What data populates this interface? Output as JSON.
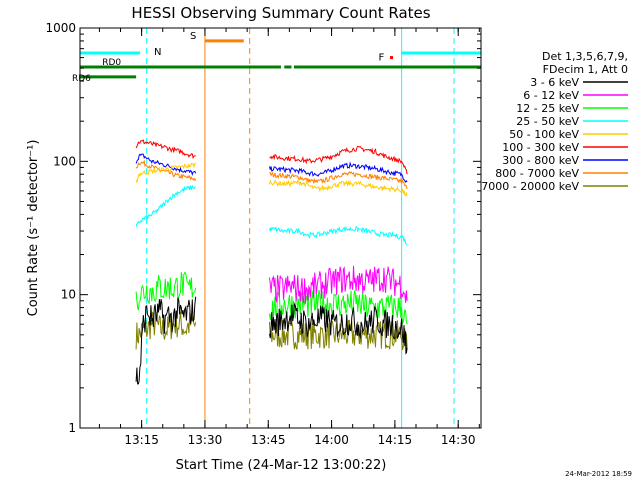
{
  "chart_data": {
    "type": "line",
    "title": "HESSI Observing Summary Count Rates",
    "xlabel": "Start Time (24-Mar-12 13:00:22)",
    "ylabel": "Count Rate (s⁻¹ detector⁻¹)",
    "x_unit": "minutes after 13:00:22",
    "xlim": [
      0,
      95
    ],
    "ylim": [
      1,
      1000
    ],
    "yscale": "log",
    "grid": false,
    "legend_position": "right",
    "x_ticks": [
      {
        "label": "13:15",
        "value": 14.6
      },
      {
        "label": "13:30",
        "value": 29.6
      },
      {
        "label": "13:45",
        "value": 44.6
      },
      {
        "label": "14:00",
        "value": 59.6
      },
      {
        "label": "14:15",
        "value": 74.6
      },
      {
        "label": "14:30",
        "value": 89.6
      }
    ],
    "y_ticks": [
      {
        "label": "1",
        "value": 1
      },
      {
        "label": "10",
        "value": 10
      },
      {
        "label": "100",
        "value": 100
      },
      {
        "label": "1000",
        "value": 1000
      }
    ],
    "legend_header": [
      "Det 1,3,5,6,7,9,",
      "FDecim 1, Att 0"
    ],
    "series": [
      {
        "name": "3 - 6 keV",
        "color": "#000000",
        "x": [
          13.3,
          14,
          15,
          16,
          17,
          18,
          19,
          20,
          21,
          22,
          23,
          24,
          25,
          26,
          27,
          27.6,
          44.9,
          46,
          48,
          50,
          52,
          54,
          56,
          58,
          60,
          62,
          64,
          66,
          68,
          70,
          72,
          74,
          76,
          76.4,
          77.5
        ],
        "y": [
          2.5,
          2.3,
          6,
          7.5,
          6.5,
          7,
          7.5,
          6.5,
          7,
          6.5,
          7.5,
          7,
          7,
          7.5,
          7.5,
          8,
          6,
          6,
          6.5,
          7,
          6.5,
          6,
          6.5,
          6.5,
          6,
          6,
          6.5,
          6,
          6,
          6.5,
          6,
          6,
          5.5,
          5.5,
          4
        ]
      },
      {
        "name": "6 - 12 keV",
        "color": "#ff00ff",
        "x": [
          44.9,
          46,
          48,
          50,
          52,
          54,
          56,
          58,
          60,
          62,
          64,
          66,
          68,
          70,
          72,
          74,
          76,
          76.4,
          77.5
        ],
        "y": [
          11,
          11,
          11,
          11.5,
          11,
          11,
          11.5,
          12,
          12.5,
          13,
          13,
          13,
          12.5,
          13,
          13.5,
          12.5,
          12,
          12,
          9
        ]
      },
      {
        "name": "12 - 25 keV",
        "color": "#00ff00",
        "x": [
          13.3,
          14,
          15,
          16,
          17,
          18,
          19,
          20,
          21,
          22,
          23,
          24,
          25,
          26,
          27,
          27.6,
          44.9,
          46,
          48,
          50,
          52,
          54,
          56,
          58,
          60,
          62,
          64,
          66,
          68,
          70,
          72,
          74,
          76,
          76.4,
          77.5
        ],
        "y": [
          9,
          10,
          10.5,
          11,
          10.5,
          11,
          11.5,
          11,
          11.5,
          11,
          11.5,
          12,
          11.5,
          11,
          11.5,
          11,
          8,
          8,
          8.5,
          8.5,
          8.5,
          8.5,
          8.5,
          8.5,
          8.5,
          8.5,
          8.5,
          8.5,
          8,
          8,
          8,
          8,
          8,
          7.5,
          6
        ]
      },
      {
        "name": "25 - 50 keV",
        "color": "#00ffff",
        "x": [
          13.3,
          14,
          15,
          16,
          17,
          18,
          19,
          20,
          21,
          22,
          23,
          24,
          25,
          26,
          27,
          27.6,
          44.9,
          46,
          48,
          50,
          52,
          54,
          56,
          58,
          60,
          62,
          64,
          66,
          68,
          70,
          72,
          74,
          76,
          76.4,
          77.5
        ],
        "y": [
          32,
          35,
          37,
          38,
          40,
          42,
          45,
          48,
          52,
          55,
          58,
          60,
          62,
          63,
          64,
          63,
          31,
          31,
          30,
          30,
          30,
          28,
          28,
          29,
          30,
          31,
          31,
          31,
          30,
          29,
          28,
          28,
          27,
          27,
          24
        ]
      },
      {
        "name": "50 - 100 keV",
        "color": "#ffcc00",
        "x": [
          13.3,
          14,
          15,
          16,
          17,
          18,
          19,
          20,
          21,
          22,
          23,
          24,
          25,
          26,
          27,
          27.6,
          44.9,
          46,
          48,
          50,
          52,
          54,
          56,
          58,
          60,
          62,
          64,
          66,
          68,
          70,
          72,
          74,
          76,
          76.4,
          77.5
        ],
        "y": [
          70,
          80,
          82,
          83,
          84,
          85,
          86,
          87,
          88,
          89,
          90,
          91,
          92,
          93,
          94,
          95,
          70,
          69,
          68,
          68,
          70,
          66,
          62,
          63,
          66,
          68,
          68,
          68,
          66,
          64,
          63,
          62,
          61,
          60,
          55
        ]
      },
      {
        "name": "100 - 300 keV",
        "color": "#ff0000",
        "x": [
          13.3,
          14,
          15,
          16,
          17,
          18,
          19,
          20,
          21,
          22,
          23,
          24,
          25,
          26,
          27,
          27.6,
          44.9,
          46,
          48,
          50,
          52,
          54,
          56,
          58,
          60,
          62,
          64,
          66,
          68,
          70,
          72,
          74,
          76,
          76.4,
          77.5
        ],
        "y": [
          130,
          140,
          140,
          138,
          135,
          132,
          130,
          128,
          125,
          122,
          120,
          118,
          115,
          112,
          110,
          108,
          110,
          108,
          106,
          105,
          104,
          100,
          102,
          105,
          110,
          118,
          122,
          125,
          122,
          118,
          110,
          105,
          100,
          98,
          80
        ]
      },
      {
        "name": "300 - 800 keV",
        "color": "#0000ff",
        "x": [
          13.3,
          14,
          15,
          16,
          17,
          18,
          19,
          20,
          21,
          22,
          23,
          24,
          25,
          26,
          27,
          27.6,
          44.9,
          46,
          48,
          50,
          52,
          54,
          56,
          58,
          60,
          62,
          64,
          66,
          68,
          70,
          72,
          74,
          76,
          76.4,
          77.5
        ],
        "y": [
          100,
          110,
          110,
          105,
          100,
          98,
          96,
          94,
          92,
          90,
          88,
          86,
          85,
          83,
          82,
          80,
          88,
          88,
          87,
          86,
          85,
          82,
          80,
          82,
          87,
          92,
          93,
          92,
          90,
          88,
          85,
          82,
          80,
          78,
          70
        ]
      },
      {
        "name": "800 - 7000 keV",
        "color": "#ff8000",
        "x": [
          13.3,
          14,
          15,
          16,
          17,
          18,
          19,
          20,
          21,
          22,
          23,
          24,
          25,
          26,
          27,
          27.6,
          44.9,
          46,
          48,
          50,
          52,
          54,
          56,
          58,
          60,
          62,
          64,
          66,
          68,
          70,
          72,
          74,
          76,
          76.4,
          77.5
        ],
        "y": [
          90,
          98,
          97,
          94,
          91,
          88,
          86,
          84,
          82,
          80,
          78,
          77,
          76,
          75,
          74,
          73,
          80,
          79,
          78,
          77,
          76,
          72,
          70,
          72,
          76,
          80,
          80,
          80,
          78,
          76,
          75,
          73,
          71,
          70,
          62
        ]
      },
      {
        "name": "7000 - 20000 keV",
        "color": "#808000",
        "x": [
          13.3,
          14,
          15,
          16,
          17,
          18,
          19,
          20,
          21,
          22,
          23,
          24,
          25,
          26,
          27,
          27.6,
          44.9,
          46,
          48,
          50,
          52,
          54,
          56,
          58,
          60,
          62,
          64,
          66,
          68,
          70,
          72,
          74,
          76,
          76.4,
          77.5
        ],
        "y": [
          5,
          5,
          5.5,
          5.5,
          6,
          6,
          5.5,
          5.5,
          5.5,
          6,
          6,
          6,
          5.5,
          6,
          6,
          5.5,
          5,
          5,
          5,
          5,
          5,
          5,
          5,
          5,
          5,
          5,
          5,
          5,
          5,
          5,
          5,
          5,
          5,
          4.8,
          4
        ]
      }
    ],
    "annotations": {
      "night": {
        "label": "N",
        "color": "#00ffff",
        "level": 650,
        "segments": [
          [
            0,
            14.2
          ],
          [
            76.2,
            95
          ]
        ],
        "dashed_x": [
          15.8,
          88.6
        ],
        "solid_x": [
          0,
          76.2
        ]
      },
      "saa": {
        "label": "S",
        "color": "#ff8000",
        "level": 800,
        "segment": [
          29.6,
          38.8
        ],
        "solid_x": 29.6,
        "dashed_x": 40.2
      },
      "flare": {
        "label": "F",
        "color": "#ff0000",
        "x": 73.8,
        "level": 600
      },
      "rd0": {
        "label": "RD0",
        "color": "#008000",
        "level": 510,
        "segments": [
          [
            0,
            47.6
          ],
          [
            48.4,
            50.1
          ],
          [
            50.7,
            95
          ]
        ]
      },
      "rd6": {
        "label": "RD6",
        "color": "#008000",
        "level": 430,
        "segment": [
          0,
          13.3
        ]
      }
    },
    "footer": "24-Mar-2012 18:59"
  }
}
